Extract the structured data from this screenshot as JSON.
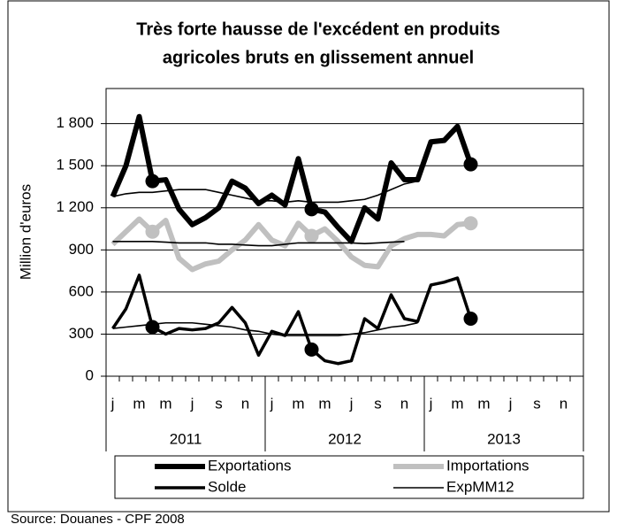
{
  "chart_data": {
    "type": "line",
    "title": [
      "Très forte hausse de l'excédent en produits",
      "agricoles bruts en glissement annuel"
    ],
    "y_label": "Million d'euros",
    "source": "Source: Douanes - CPF 2008",
    "categories": [
      "j",
      null,
      "m",
      null,
      "m",
      null,
      "j",
      null,
      "s",
      null,
      "n",
      null,
      "j",
      null,
      "m",
      null,
      "m",
      null,
      "j",
      null,
      "s",
      null,
      "n",
      null,
      "j",
      null,
      "m",
      null,
      "m",
      null,
      "j",
      null,
      "s",
      null,
      "n",
      null
    ],
    "years": [
      "2011",
      "2012",
      "2013"
    ],
    "ylim": [
      0,
      2050
    ],
    "yticks": [
      0,
      300,
      600,
      900,
      {
        "value": 1200,
        "label": "1 200"
      },
      {
        "value": 1500,
        "label": "1 500"
      },
      {
        "value": 1800,
        "label": "1 800"
      }
    ],
    "grid": true,
    "series": [
      {
        "name": "Exportations",
        "color": "#000000",
        "width": 6,
        "markers": [
          3,
          15,
          27
        ],
        "values": [
          1280,
          1500,
          1850,
          1390,
          1400,
          1190,
          1080,
          1130,
          1200,
          1390,
          1340,
          1230,
          1290,
          1220,
          1550,
          1190,
          1170,
          1060,
          960,
          1200,
          1120,
          1520,
          1400,
          1400,
          1670,
          1680,
          1780,
          1510,
          null,
          null,
          null,
          null,
          null,
          null,
          null,
          null
        ]
      },
      {
        "name": "Importations",
        "color": "#c0c0c0",
        "width": 6,
        "markers": [
          3,
          15,
          27
        ],
        "values": [
          940,
          1030,
          1120,
          1030,
          1110,
          840,
          760,
          800,
          820,
          900,
          970,
          1080,
          970,
          930,
          1090,
          1000,
          1050,
          960,
          850,
          790,
          780,
          930,
          980,
          1010,
          1010,
          1000,
          1080,
          1090,
          null,
          null,
          null,
          null,
          null,
          null,
          null,
          null
        ]
      },
      {
        "name": "Solde",
        "color": "#000000",
        "width": 3.5,
        "markers": [
          3,
          15,
          27
        ],
        "values": [
          340,
          480,
          720,
          350,
          300,
          340,
          330,
          340,
          380,
          490,
          380,
          150,
          320,
          290,
          460,
          190,
          110,
          90,
          110,
          410,
          340,
          580,
          410,
          390,
          650,
          670,
          700,
          410,
          null,
          null,
          null,
          null,
          null,
          null,
          null,
          null
        ]
      },
      {
        "name": "ExpMM12",
        "color": "#000000",
        "width": 1.6,
        "values": [
          1280,
          1300,
          1310,
          1310,
          1320,
          1330,
          1330,
          1330,
          1310,
          1290,
          1270,
          1250,
          1250,
          1240,
          1250,
          1240,
          1240,
          1240,
          1250,
          1260,
          1290,
          1330,
          1370,
          1390,
          null,
          null,
          null,
          null,
          null,
          null,
          null,
          null,
          null,
          null,
          null,
          null
        ]
      },
      {
        "color": "#000000",
        "width": 1.6,
        "values": [
          960,
          960,
          960,
          960,
          955,
          950,
          950,
          950,
          940,
          940,
          935,
          930,
          930,
          940,
          950,
          950,
          950,
          950,
          950,
          945,
          950,
          955,
          960,
          null,
          null,
          null,
          null,
          null,
          null,
          null,
          null,
          null,
          null,
          null,
          null,
          null
        ]
      },
      {
        "color": "#000000",
        "width": 1.6,
        "values": [
          340,
          350,
          360,
          370,
          380,
          380,
          380,
          370,
          360,
          350,
          330,
          320,
          300,
          290,
          290,
          290,
          290,
          290,
          300,
          310,
          330,
          350,
          360,
          380,
          null,
          null,
          null,
          null,
          null,
          null,
          null,
          null,
          null,
          null,
          null,
          null
        ]
      }
    ]
  }
}
